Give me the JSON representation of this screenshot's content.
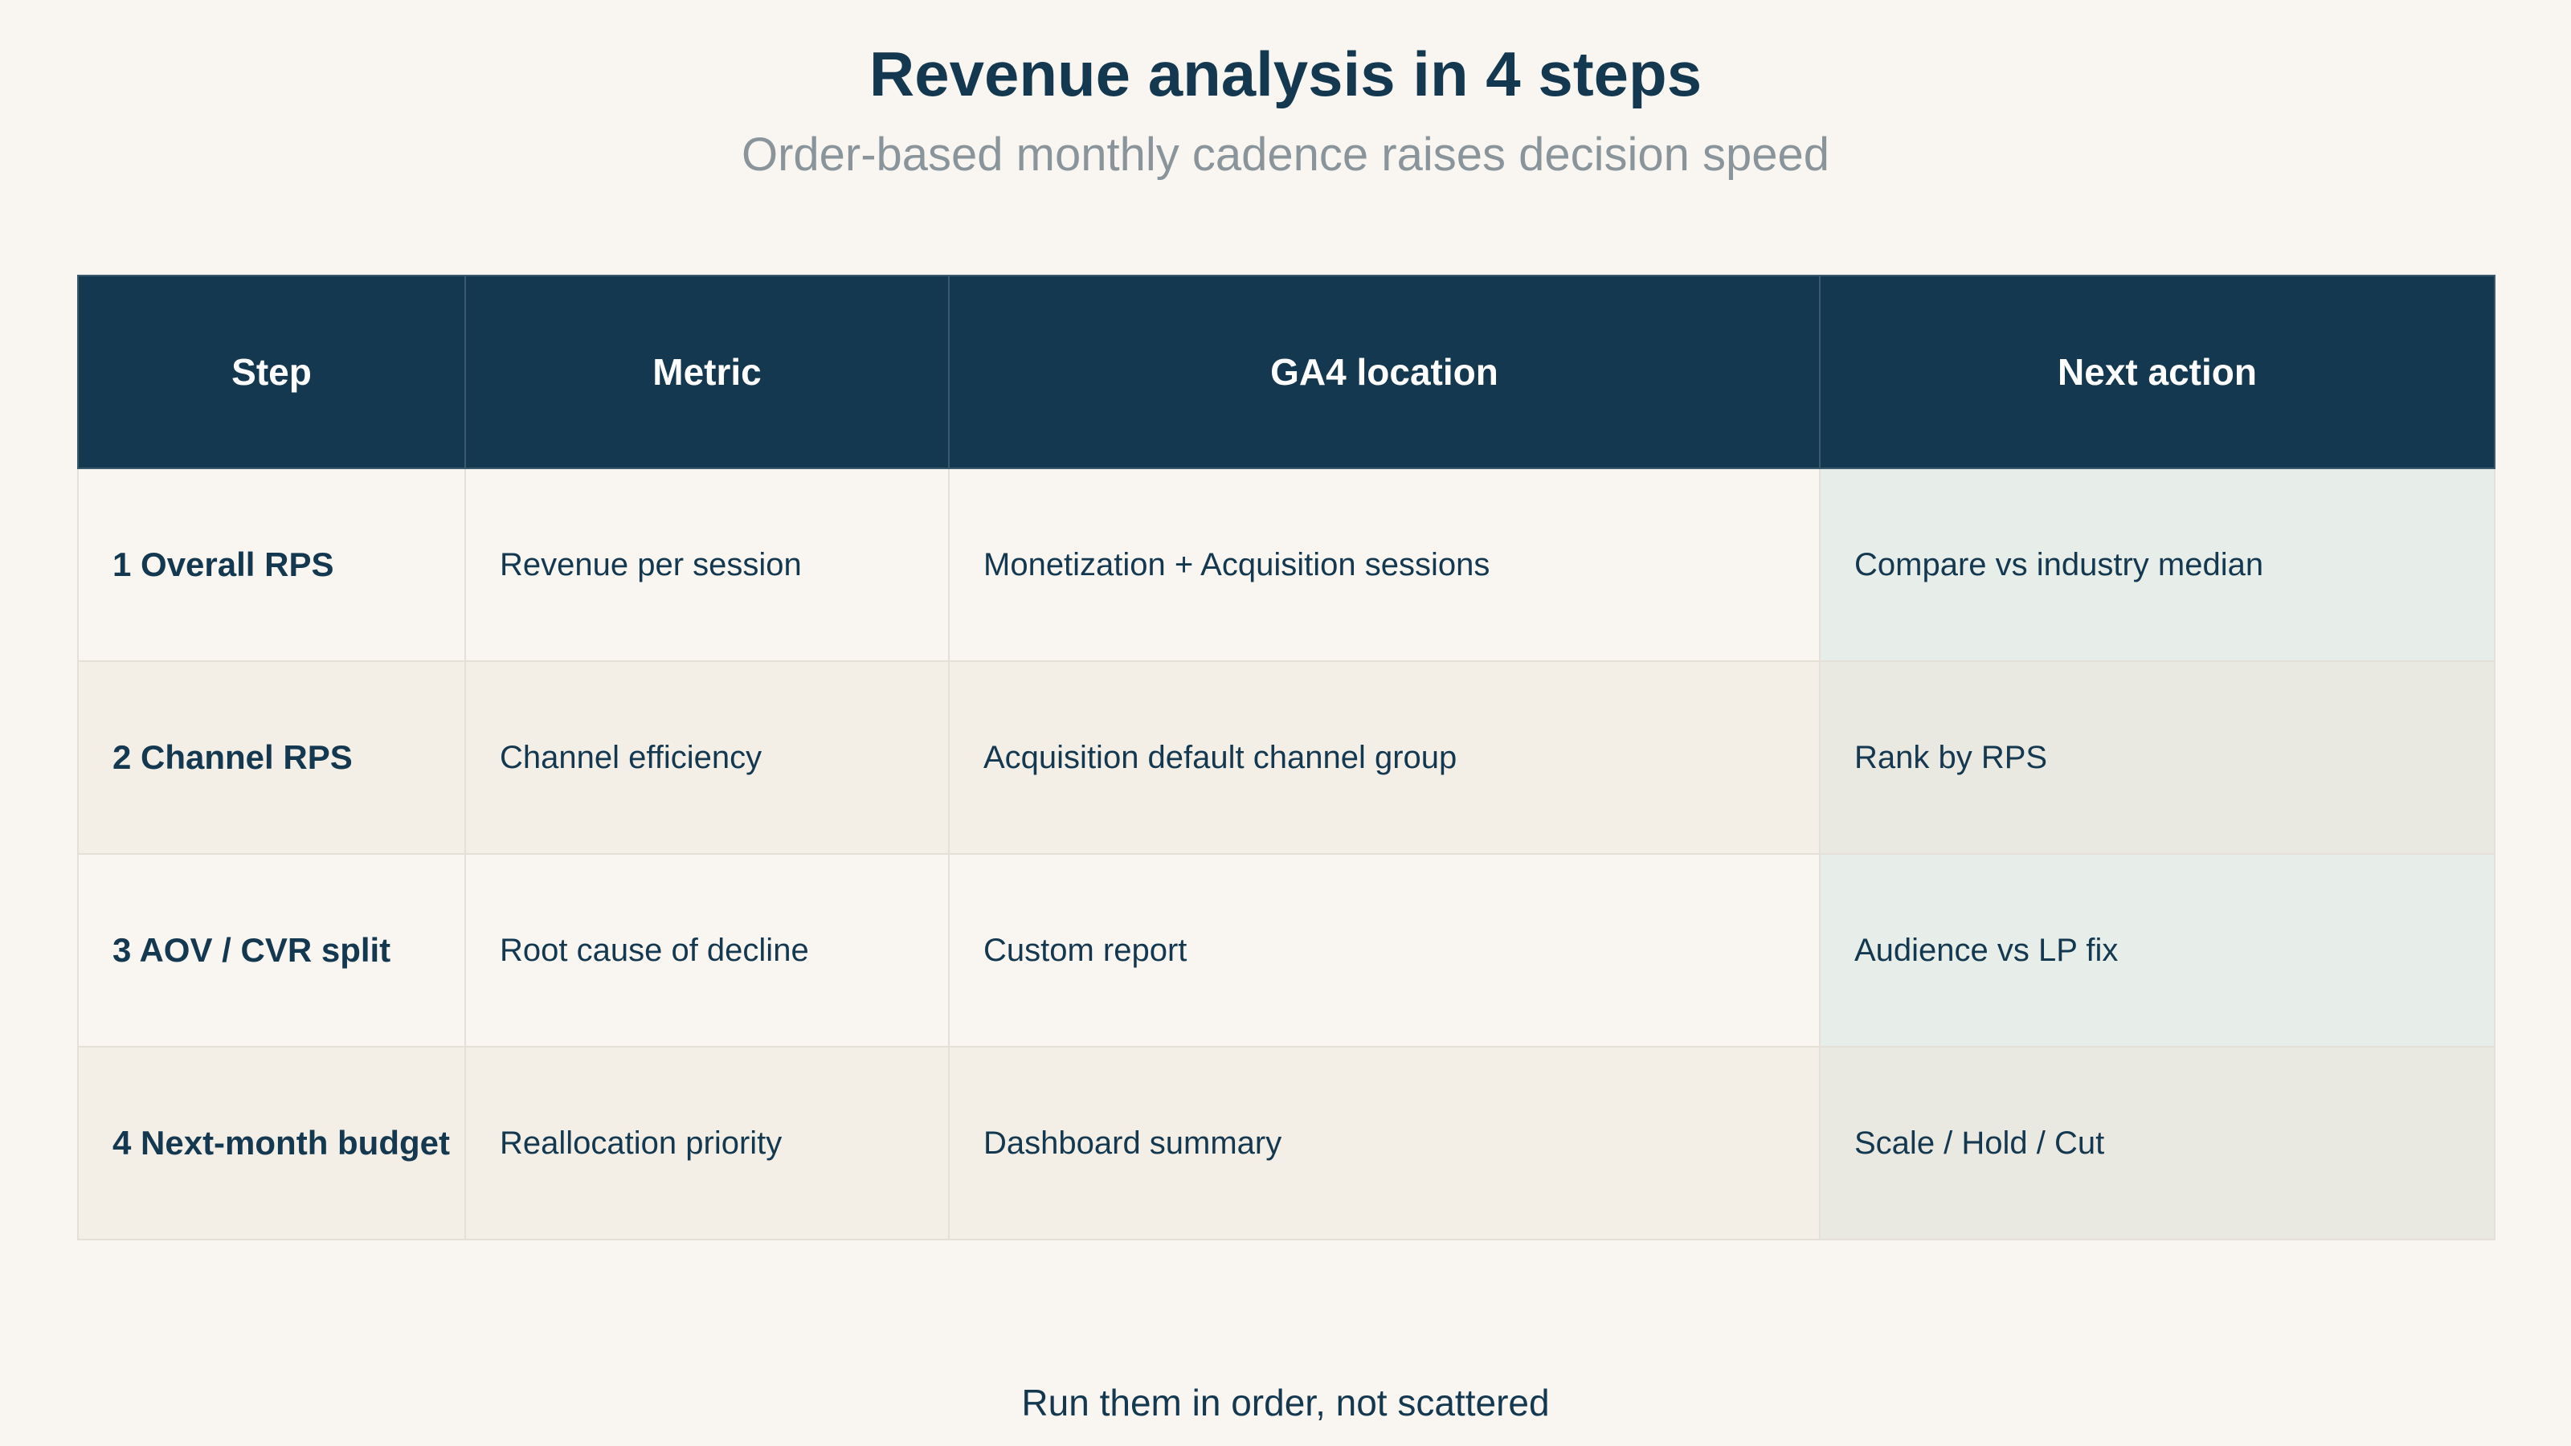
{
  "title": "Revenue analysis in 4 steps",
  "subtitle": "Order-based monthly cadence raises decision speed",
  "table": {
    "headers": [
      "Step",
      "Metric",
      "GA4 location",
      "Next action"
    ],
    "rows": [
      [
        "1 Overall RPS",
        "Revenue per session",
        "Monetization + Acquisition sessions",
        "Compare vs industry median"
      ],
      [
        "2 Channel RPS",
        "Channel efficiency",
        "Acquisition default channel group",
        "Rank by RPS"
      ],
      [
        "3 AOV / CVR split",
        "Root cause of decline",
        "Custom report",
        "Audience vs LP fix"
      ],
      [
        "4 Next-month budget",
        "Reallocation priority",
        "Dashboard summary",
        "Scale / Hold / Cut"
      ]
    ]
  },
  "footer": "Run them in order, not scattered",
  "colors": {
    "background": "#f9f6f1",
    "header_fill": "#14384f",
    "text": "#14384f",
    "subtitle_text": "#8a949b",
    "action_column_tint": "#e7ede8"
  }
}
